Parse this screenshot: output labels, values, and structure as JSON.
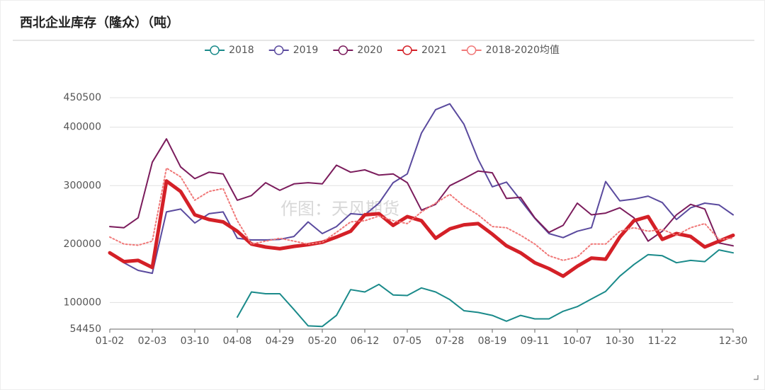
{
  "chart_data": {
    "type": "line",
    "title": "西北企业库存（隆众）（吨）",
    "watermark": "作图：天风期货",
    "categories": [
      "01-02",
      null,
      null,
      "02-03",
      null,
      null,
      "03-10",
      null,
      null,
      "04-08",
      null,
      null,
      "04-29",
      null,
      null,
      "05-20",
      null,
      null,
      "06-12",
      null,
      null,
      "07-05",
      null,
      null,
      "07-28",
      null,
      null,
      "08-19",
      null,
      null,
      "09-11",
      null,
      null,
      "10-07",
      null,
      null,
      "10-30",
      null,
      null,
      "11-22",
      null,
      null,
      null,
      null,
      "12-30"
    ],
    "ylim": [
      54450,
      450500
    ],
    "yticks": [
      54450,
      100000,
      200000,
      300000,
      400000,
      450500
    ],
    "grid": true,
    "legend": "top",
    "series": [
      {
        "name": "2018",
        "color": "#1a8a8a",
        "line_width": 2,
        "dashed": false,
        "values": [
          null,
          null,
          null,
          null,
          null,
          null,
          null,
          null,
          null,
          75000,
          118000,
          115000,
          115000,
          88000,
          60000,
          59000,
          78000,
          122000,
          118000,
          131000,
          113000,
          112000,
          125000,
          118000,
          105000,
          86000,
          83000,
          78000,
          68000,
          78000,
          72000,
          72000,
          85000,
          93000,
          106000,
          119000,
          145000,
          165000,
          182000,
          180000,
          168000,
          172000,
          170000,
          190000,
          185000
        ]
      },
      {
        "name": "2019",
        "color": "#5a4a9e",
        "line_width": 2,
        "dashed": false,
        "values": [
          185000,
          168000,
          155000,
          150000,
          255000,
          260000,
          236000,
          252000,
          255000,
          210000,
          207000,
          207000,
          208000,
          213000,
          238000,
          218000,
          230000,
          252000,
          250000,
          270000,
          305000,
          320000,
          390000,
          430000,
          440000,
          405000,
          345000,
          298000,
          306000,
          275000,
          244000,
          218000,
          211000,
          222000,
          228000,
          307000,
          274000,
          277000,
          282000,
          271000,
          242000,
          262000,
          270000,
          267000,
          250000
        ]
      },
      {
        "name": "2020",
        "color": "#7b1c5c",
        "line_width": 2,
        "dashed": false,
        "values": [
          230000,
          228000,
          245000,
          340000,
          380000,
          332000,
          312000,
          323000,
          320000,
          275000,
          283000,
          305000,
          292000,
          303000,
          305000,
          303000,
          335000,
          323000,
          327000,
          318000,
          320000,
          305000,
          258000,
          268000,
          300000,
          312000,
          325000,
          322000,
          278000,
          280000,
          245000,
          220000,
          232000,
          270000,
          250000,
          253000,
          262000,
          245000,
          205000,
          222000,
          250000,
          268000,
          260000,
          202000,
          197000
        ]
      },
      {
        "name": "2021",
        "color": "#d42027",
        "line_width": 5,
        "dashed": false,
        "values": [
          185000,
          170000,
          172000,
          160000,
          308000,
          290000,
          250000,
          242000,
          238000,
          222000,
          200000,
          195000,
          192000,
          196000,
          199000,
          203000,
          212000,
          222000,
          250000,
          252000,
          232000,
          247000,
          240000,
          210000,
          226000,
          233000,
          235000,
          217000,
          197000,
          185000,
          168000,
          158000,
          145000,
          162000,
          176000,
          174000,
          212000,
          240000,
          247000,
          208000,
          218000,
          213000,
          195000,
          205000,
          215000
        ]
      },
      {
        "name": "2018-2020均值",
        "color": "#f07878",
        "line_width": 2,
        "dashed": true,
        "values": [
          212000,
          200000,
          198000,
          205000,
          330000,
          315000,
          275000,
          290000,
          295000,
          240000,
          200000,
          205000,
          210000,
          205000,
          200000,
          203000,
          220000,
          238000,
          240000,
          248000,
          240000,
          235000,
          255000,
          270000,
          285000,
          265000,
          250000,
          230000,
          228000,
          215000,
          200000,
          180000,
          172000,
          178000,
          200000,
          200000,
          222000,
          228000,
          222000,
          225000,
          215000,
          228000,
          235000,
          208000,
          210000
        ]
      }
    ]
  }
}
